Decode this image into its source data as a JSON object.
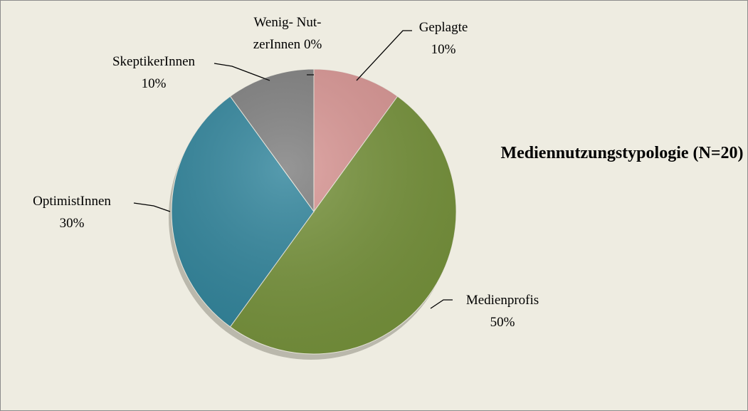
{
  "chart_data": {
    "type": "pie",
    "title": "Mediennutzungstypologie (N=20)",
    "categories": [
      "Geplagte",
      "Medienprofis",
      "OptimistInnen",
      "SkeptikerInnen",
      "Wenig- Nut-zerInnen"
    ],
    "values": [
      10,
      50,
      30,
      10,
      0
    ],
    "value_labels": [
      "10%",
      "50%",
      "30%",
      "10%",
      "0%"
    ],
    "colors": [
      "#d99694",
      "#77933c",
      "#31859c",
      "#7f7f7f",
      "#4f81bd"
    ]
  }
}
